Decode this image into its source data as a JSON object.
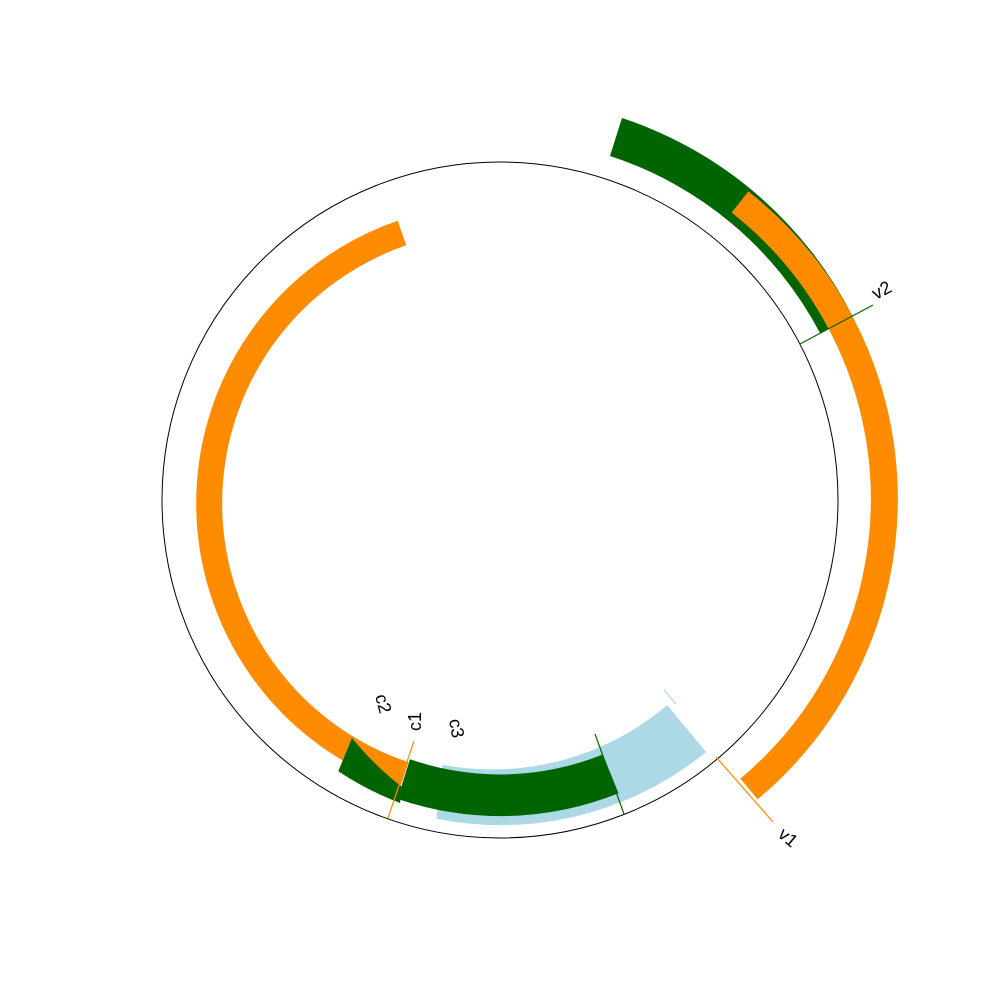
{
  "diagram": {
    "circle_stroke": "#000000",
    "labels": {
      "v1": "v1",
      "v2": "v2",
      "c1": "c1",
      "c2": "c2",
      "c3": "c3"
    },
    "colors": {
      "orange": "#ff8c00",
      "dark_green": "#006400",
      "light_blue": "#add8e6"
    }
  }
}
